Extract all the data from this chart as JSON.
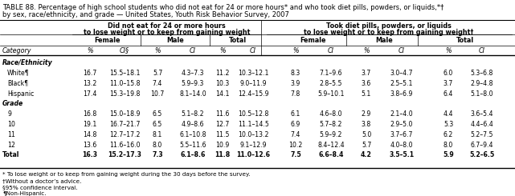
{
  "title_line1": "TABLE 88. Percentage of high school students who did not eat for 24 or more hours* and who took diet pills, powders, or liquids,*†",
  "title_line2": "by sex, race/ethnicity, and grade — United States, Youth Risk Behavior Survey, 2007",
  "col_header1_left": "Did not eat for 24 or more hours",
  "col_header2_left": "to lose weight or to keep from gaining weight",
  "col_header1_right": "Took diet pills, powders, or liquids",
  "col_header2_right": "to lose weight or to keep from gaining weight†",
  "section_race": "Race/Ethnicity",
  "section_grade": "Grade",
  "rows": [
    {
      "label": "White¶",
      "bold": false,
      "vals": [
        "16.7",
        "15.5–18.1",
        "5.7",
        "4.3–7.3",
        "11.2",
        "10.3–12.1",
        "8.3",
        "7.1–9.6",
        "3.7",
        "3.0–4.7",
        "6.0",
        "5.3–6.8"
      ]
    },
    {
      "label": "Black¶",
      "bold": false,
      "vals": [
        "13.2",
        "11.0–15.8",
        "7.4",
        "5.9–9.3",
        "10.3",
        "9.0–11.9",
        "3.9",
        "2.8–5.5",
        "3.6",
        "2.5–5.1",
        "3.7",
        "2.9–4.8"
      ]
    },
    {
      "label": "Hispanic",
      "bold": false,
      "vals": [
        "17.4",
        "15.3–19.8",
        "10.7",
        "8.1–14.0",
        "14.1",
        "12.4–15.9",
        "7.8",
        "5.9–10.1",
        "5.1",
        "3.8–6.9",
        "6.4",
        "5.1–8.0"
      ]
    },
    {
      "label": "9",
      "bold": false,
      "vals": [
        "16.8",
        "15.0–18.9",
        "6.5",
        "5.1–8.2",
        "11.6",
        "10.5–12.8",
        "6.1",
        "4.6–8.0",
        "2.9",
        "2.1–4.0",
        "4.4",
        "3.6–5.4"
      ]
    },
    {
      "label": "10",
      "bold": false,
      "vals": [
        "19.1",
        "16.7–21.7",
        "6.5",
        "4.9–8.6",
        "12.7",
        "11.1–14.5",
        "6.9",
        "5.7–8.2",
        "3.8",
        "2.9–5.0",
        "5.3",
        "4.4–6.4"
      ]
    },
    {
      "label": "11",
      "bold": false,
      "vals": [
        "14.8",
        "12.7–17.2",
        "8.1",
        "6.1–10.8",
        "11.5",
        "10.0–13.2",
        "7.4",
        "5.9–9.2",
        "5.0",
        "3.7–6.7",
        "6.2",
        "5.2–7.5"
      ]
    },
    {
      "label": "12",
      "bold": false,
      "vals": [
        "13.6",
        "11.6–16.0",
        "8.0",
        "5.5–11.6",
        "10.9",
        "9.1–12.9",
        "10.2",
        "8.4–12.4",
        "5.7",
        "4.0–8.0",
        "8.0",
        "6.7–9.4"
      ]
    },
    {
      "label": "Total",
      "bold": true,
      "vals": [
        "16.3",
        "15.2–17.3",
        "7.3",
        "6.1–8.6",
        "11.8",
        "11.0–12.6",
        "7.5",
        "6.6–8.4",
        "4.2",
        "3.5–5.1",
        "5.9",
        "5.2–6.5"
      ]
    }
  ],
  "footnotes": [
    "* To lose weight or to keep from gaining weight during the 30 days before the survey.",
    "†Without a doctor’s advice.",
    "§95% confidence interval.",
    "¶Non-Hispanic."
  ],
  "col_labels": [
    "%",
    "CI§",
    "%",
    "CI",
    "%",
    "CI",
    "%",
    "CI",
    "%",
    "CI",
    "%",
    "CI"
  ],
  "sub_headers_left": [
    "Female",
    "Male",
    "Total"
  ],
  "sub_headers_right": [
    "Female",
    "Male",
    "Total"
  ],
  "fs_title": 6.0,
  "fs_header": 5.8,
  "fs_body": 5.6,
  "fs_footnote": 5.2
}
